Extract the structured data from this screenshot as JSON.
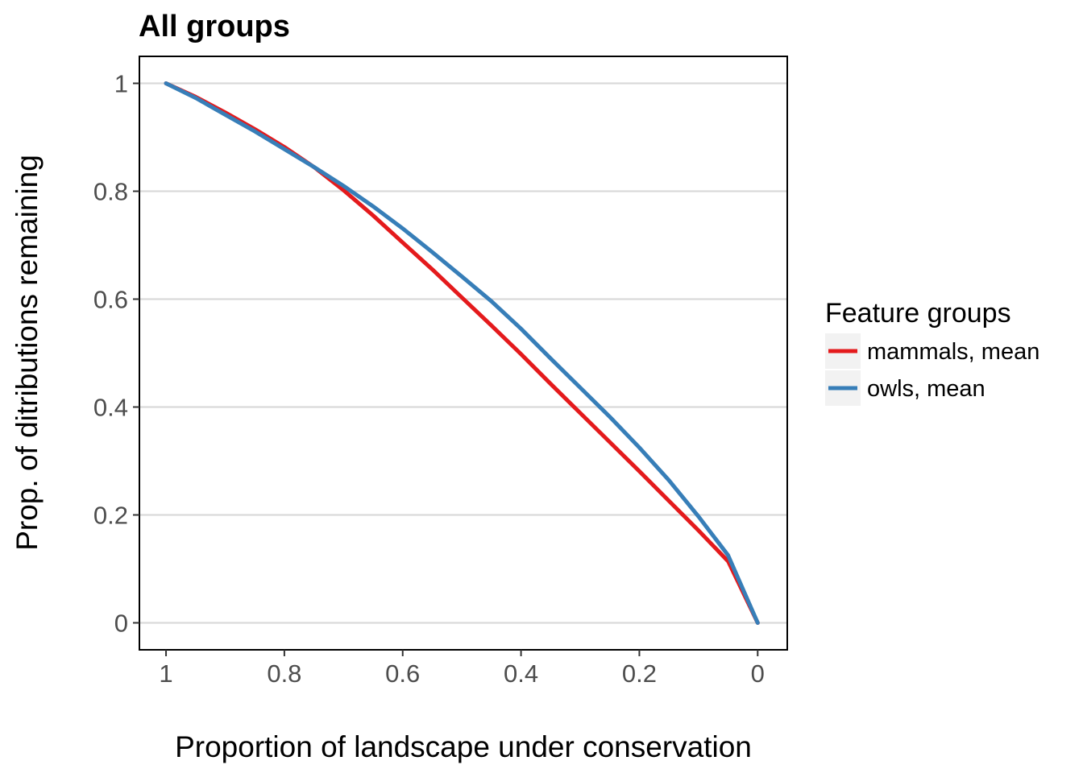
{
  "chart_data": {
    "type": "line",
    "title": "All groups",
    "xlabel": "Proportion of landscape under conservation",
    "ylabel": "Prop. of ditributions remaining",
    "x_reversed": true,
    "xlim": [
      1.045,
      -0.05
    ],
    "ylim": [
      -0.05,
      1.05
    ],
    "x_ticks": [
      1,
      0.8,
      0.6,
      0.4,
      0.2,
      0
    ],
    "x_tick_labels": [
      "1",
      "0.8",
      "0.6",
      "0.4",
      "0.2",
      "0"
    ],
    "y_ticks": [
      0,
      0.2,
      0.4,
      0.6,
      0.8,
      1
    ],
    "y_tick_labels": [
      "0",
      "0.2",
      "0.4",
      "0.6",
      "0.8",
      "1"
    ],
    "grid": "horizontal major",
    "legend": {
      "title": "Feature groups",
      "position": "right"
    },
    "series": [
      {
        "name": "mammals, mean",
        "color": "#e41a1c",
        "x": [
          1,
          0.95,
          0.9,
          0.85,
          0.8,
          0.75,
          0.7,
          0.65,
          0.6,
          0.55,
          0.5,
          0.45,
          0.4,
          0.35,
          0.3,
          0.25,
          0.2,
          0.15,
          0.1,
          0.05,
          0
        ],
        "y": [
          1,
          0.975,
          0.946,
          0.915,
          0.882,
          0.845,
          0.802,
          0.755,
          0.705,
          0.655,
          0.603,
          0.551,
          0.498,
          0.443,
          0.389,
          0.335,
          0.281,
          0.226,
          0.171,
          0.114,
          0.0
        ]
      },
      {
        "name": "owls, mean",
        "color": "#377eb8",
        "x": [
          1,
          0.95,
          0.9,
          0.85,
          0.8,
          0.75,
          0.7,
          0.65,
          0.6,
          0.55,
          0.5,
          0.45,
          0.4,
          0.35,
          0.3,
          0.25,
          0.2,
          0.15,
          0.1,
          0.05,
          0
        ],
        "y": [
          1,
          0.973,
          0.942,
          0.911,
          0.878,
          0.845,
          0.81,
          0.772,
          0.731,
          0.687,
          0.642,
          0.596,
          0.545,
          0.49,
          0.436,
          0.382,
          0.325,
          0.264,
          0.197,
          0.125,
          0.0
        ]
      }
    ]
  }
}
